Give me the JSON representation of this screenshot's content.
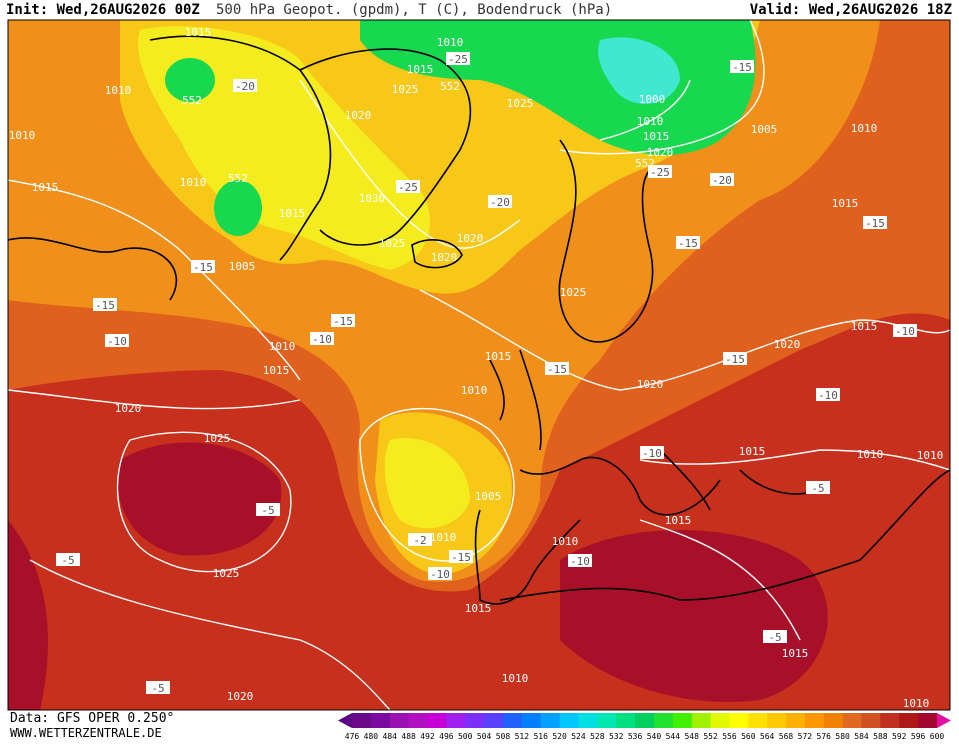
{
  "header": {
    "init": "Init: Wed,26AUG2026 00Z",
    "title": "500 hPa Geopot. (gpdm), T (C), Bodendruck (hPa)",
    "valid": "Valid: Wed,26AUG2026 18Z"
  },
  "map": {
    "labels": [
      "1015",
      "1010",
      "552",
      "-20",
      "1010",
      "1015",
      "1010",
      "552",
      "1015",
      "1005",
      "-15",
      "-15",
      "-10",
      "1010",
      "1015",
      "-10",
      "-15",
      "1020",
      "1025",
      "-5",
      "-5",
      "1025",
      "-5",
      "1020",
      "1010",
      "1015",
      "-25",
      "552",
      "1025",
      "1020",
      "1030",
      "-25",
      "1025",
      "1020",
      "1020",
      "-20",
      "1025",
      "1000",
      "1010",
      "1015",
      "1020",
      "552",
      "-25",
      "-20",
      "-15",
      "1005",
      "1010",
      "1015",
      "-15",
      "-15",
      "1025",
      "1015",
      "1010",
      "-15",
      "-15",
      "1020",
      "1015",
      "-10",
      "1020",
      "-10",
      "-10",
      "1015",
      "1010",
      "1010",
      "-5",
      "1005",
      "1015",
      "1010",
      "-2",
      "-15",
      "1010",
      "-10",
      "-10",
      "1015",
      "-5",
      "1015",
      "1010",
      "1010"
    ]
  },
  "colorbar": {
    "labels": [
      476,
      480,
      484,
      488,
      492,
      496,
      500,
      504,
      508,
      512,
      516,
      520,
      524,
      528,
      532,
      536,
      540,
      544,
      548,
      552,
      556,
      560,
      564,
      568,
      572,
      576,
      580,
      584,
      588,
      592,
      596,
      600
    ],
    "colors": [
      "#5a0080",
      "#6a0a8a",
      "#7a0aa0",
      "#9a10b0",
      "#b010c0",
      "#c800d8",
      "#a020f0",
      "#7a30f8",
      "#5a40ff",
      "#2060ff",
      "#0080ff",
      "#00a0ff",
      "#00c8ff",
      "#00e0e0",
      "#00e8b0",
      "#00e080",
      "#00d060",
      "#20e030",
      "#40f000",
      "#a0f000",
      "#e0f800",
      "#ffff00",
      "#ffe000",
      "#ffc800",
      "#ffb000",
      "#ff9800",
      "#f08000",
      "#e06820",
      "#d05020",
      "#c03020",
      "#b01818",
      "#a00830",
      "#e010a0"
    ]
  },
  "footer": {
    "data": "Data: GFS OPER 0.250°",
    "site": "WWW.WETTERZENTRALE.DE"
  }
}
